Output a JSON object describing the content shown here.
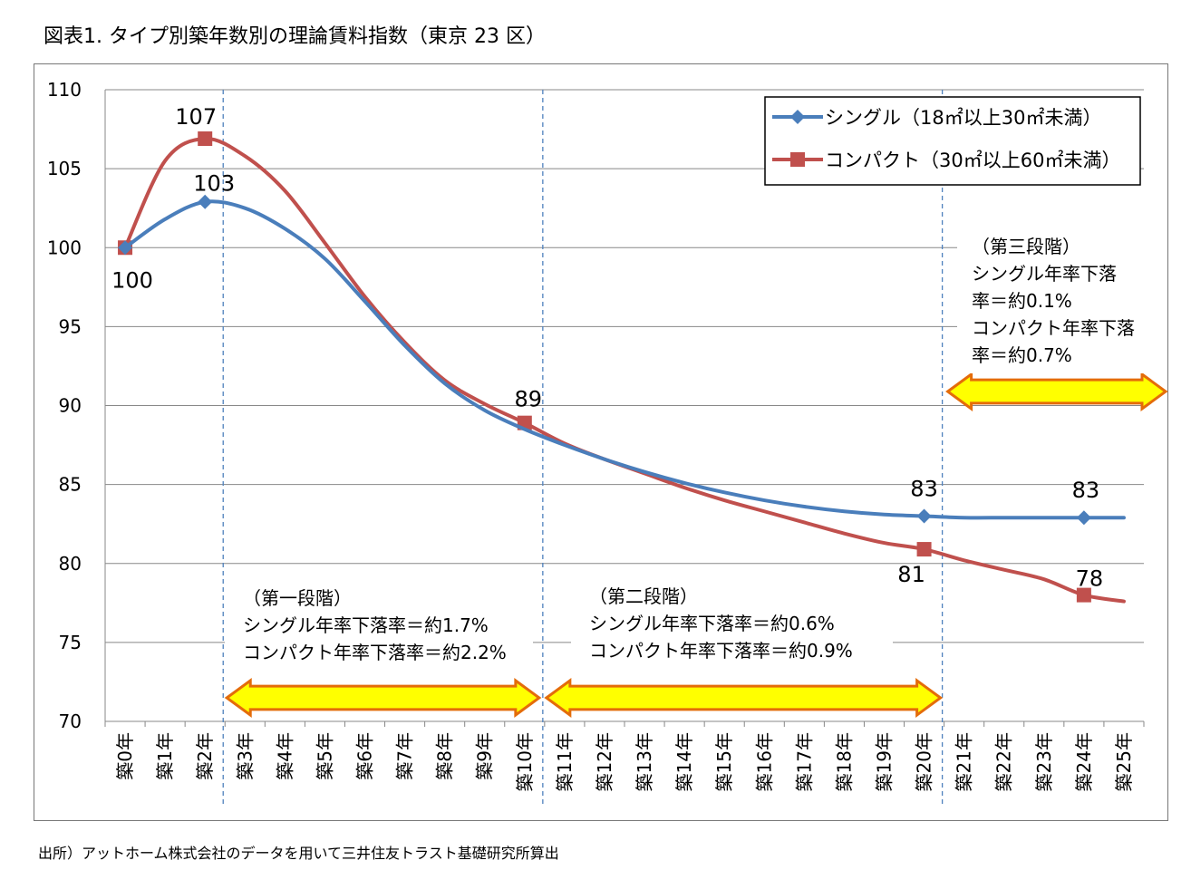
{
  "title": "図表1. タイプ別築年数別の理論賃料指数（東京 23 区）",
  "source": "出所）アットホーム株式会社のデータを用いて三井住友トラスト基礎研究所算出",
  "colors": {
    "single": "#4a7ebb",
    "compact": "#c0504d",
    "arrow_fill": "#ffff00",
    "arrow_stroke": "#e46c0a",
    "divider": "#4f81bd",
    "grid": "#888888"
  },
  "chart_data": {
    "type": "line",
    "categories": [
      "築0年",
      "築1年",
      "築2年",
      "築3年",
      "築4年",
      "築5年",
      "築6年",
      "築7年",
      "築8年",
      "築9年",
      "築10年",
      "築11年",
      "築12年",
      "築13年",
      "築14年",
      "築15年",
      "築16年",
      "築17年",
      "築18年",
      "築19年",
      "築20年",
      "築21年",
      "築22年",
      "築23年",
      "築24年",
      "築25年"
    ],
    "ylim": [
      70,
      110
    ],
    "yticks": [
      70,
      75,
      80,
      85,
      90,
      95,
      100,
      105,
      110
    ],
    "grid": true,
    "legend_position": "top-right",
    "series": [
      {
        "name": "シングル（18㎡以上30㎡未満）",
        "color": "#4a7ebb",
        "marker": "diamond",
        "values": [
          100,
          101.8,
          102.9,
          102.5,
          101.2,
          99.3,
          96.6,
          93.8,
          91.4,
          89.7,
          88.5,
          87.5,
          86.6,
          85.8,
          85.1,
          84.5,
          84.0,
          83.6,
          83.3,
          83.1,
          83.0,
          82.9,
          82.9,
          82.9,
          82.9,
          82.9
        ],
        "markers_at": [
          0,
          2,
          20,
          24
        ],
        "labels": [
          {
            "index": 0,
            "text": "100"
          },
          {
            "index": 2,
            "text": "103"
          },
          {
            "index": 20,
            "text": "83"
          },
          {
            "index": 24,
            "text": "83"
          }
        ]
      },
      {
        "name": "コンパクト（30㎡以上60㎡未満）",
        "color": "#c0504d",
        "marker": "square",
        "values": [
          100,
          105.5,
          106.9,
          105.8,
          103.6,
          100.3,
          96.9,
          94.0,
          91.6,
          90.1,
          88.9,
          87.6,
          86.6,
          85.7,
          84.8,
          84.0,
          83.3,
          82.6,
          81.9,
          81.3,
          80.9,
          80.2,
          79.6,
          79.0,
          78.0,
          77.6
        ],
        "markers_at": [
          0,
          2,
          10,
          20,
          24
        ],
        "labels": [
          {
            "index": 2,
            "text": "107"
          },
          {
            "index": 10,
            "text": "89"
          },
          {
            "index": 20,
            "text": "81"
          },
          {
            "index": 24,
            "text": "78"
          }
        ]
      }
    ],
    "stage_dividers_after": [
      2,
      10,
      20
    ],
    "annotations": [
      {
        "lines": [
          "（第一段階）",
          "シングル年率下落率＝約1.7%",
          "コンパクト年率下落率＝約2.2%"
        ]
      },
      {
        "lines": [
          "（第二段階）",
          "シングル年率下落率＝約0.6%",
          "コンパクト年率下落率＝約0.9%"
        ]
      },
      {
        "lines": [
          "（第三段階）",
          "シングル年率下落",
          "率＝約0.1%",
          "コンパクト年率下落",
          "率＝約0.7%"
        ]
      }
    ]
  }
}
